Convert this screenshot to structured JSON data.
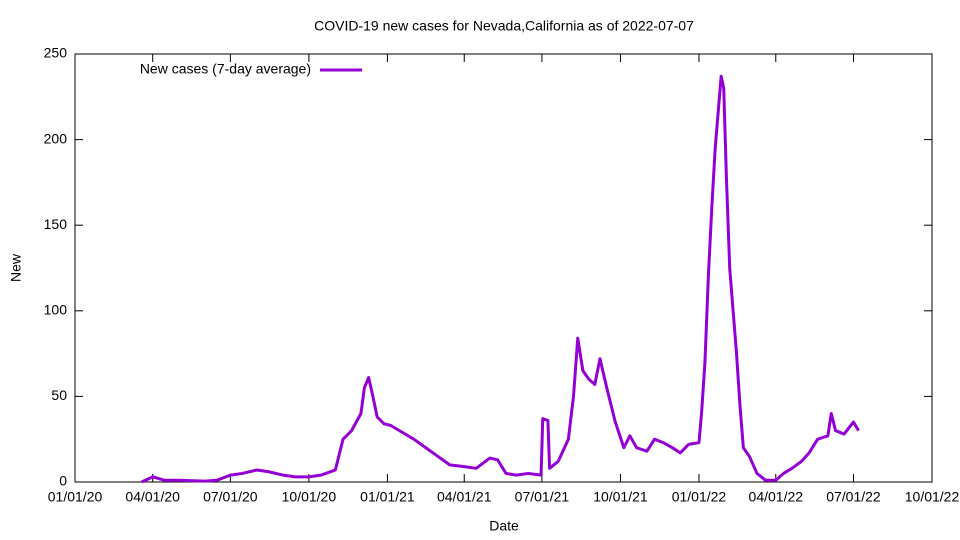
{
  "chart_data": {
    "type": "line",
    "title": "COVID-19 new cases for Nevada,California as of 2022-07-07",
    "x_label": "Date",
    "y_label": "New",
    "x": [
      "2020-03-19",
      "2020-04-01",
      "2020-04-15",
      "2020-05-01",
      "2020-06-01",
      "2020-06-15",
      "2020-07-01",
      "2020-07-15",
      "2020-08-01",
      "2020-08-15",
      "2020-09-01",
      "2020-09-15",
      "2020-10-01",
      "2020-10-15",
      "2020-11-01",
      "2020-11-10",
      "2020-11-20",
      "2020-12-01",
      "2020-12-05",
      "2020-12-10",
      "2020-12-15",
      "2020-12-20",
      "2020-12-28",
      "2021-01-05",
      "2021-01-15",
      "2021-02-01",
      "2021-02-15",
      "2021-03-01",
      "2021-03-15",
      "2021-04-01",
      "2021-04-15",
      "2021-05-01",
      "2021-05-10",
      "2021-05-20",
      "2021-06-01",
      "2021-06-15",
      "2021-06-30",
      "2021-07-02",
      "2021-07-08",
      "2021-07-10",
      "2021-07-20",
      "2021-08-01",
      "2021-08-07",
      "2021-08-12",
      "2021-08-18",
      "2021-08-25",
      "2021-09-01",
      "2021-09-07",
      "2021-09-15",
      "2021-09-25",
      "2021-10-05",
      "2021-10-12",
      "2021-10-20",
      "2021-11-01",
      "2021-11-10",
      "2021-11-20",
      "2021-12-01",
      "2021-12-10",
      "2021-12-20",
      "2022-01-01",
      "2022-01-04",
      "2022-01-08",
      "2022-01-12",
      "2022-01-16",
      "2022-01-20",
      "2022-01-25",
      "2022-01-27",
      "2022-01-30",
      "2022-02-02",
      "2022-02-06",
      "2022-02-10",
      "2022-02-14",
      "2022-02-18",
      "2022-02-22",
      "2022-03-01",
      "2022-03-10",
      "2022-03-20",
      "2022-04-01",
      "2022-04-10",
      "2022-04-20",
      "2022-05-01",
      "2022-05-10",
      "2022-05-20",
      "2022-06-01",
      "2022-06-05",
      "2022-06-10",
      "2022-06-20",
      "2022-07-01",
      "2022-07-07"
    ],
    "series": [
      {
        "name": "New cases (7-day average)",
        "color": "#9400d3",
        "values": [
          0,
          3,
          1,
          1,
          0.5,
          1,
          4,
          5,
          7,
          6,
          4,
          3,
          3,
          4,
          7,
          25,
          30,
          40,
          55,
          61,
          50,
          38,
          34,
          33,
          30,
          25,
          20,
          15,
          10,
          9,
          8,
          14,
          13,
          5,
          4,
          5,
          4,
          37,
          36,
          8,
          12,
          25,
          50,
          84,
          65,
          60,
          57,
          72,
          55,
          35,
          20,
          27,
          20,
          18,
          25,
          23,
          20,
          17,
          22,
          23,
          40,
          70,
          120,
          160,
          195,
          225,
          237,
          230,
          180,
          125,
          100,
          75,
          45,
          20,
          15,
          5,
          1,
          1,
          5,
          8,
          12,
          17,
          25,
          27,
          40,
          30,
          28,
          35,
          30
        ]
      }
    ],
    "xlim": [
      "2020-01-01",
      "2022-10-01"
    ],
    "xticks": [
      {
        "value": "2020-01-01",
        "label": "01/01/20"
      },
      {
        "value": "2020-04-01",
        "label": "04/01/20"
      },
      {
        "value": "2020-07-01",
        "label": "07/01/20"
      },
      {
        "value": "2020-10-01",
        "label": "10/01/20"
      },
      {
        "value": "2021-01-01",
        "label": "01/01/21"
      },
      {
        "value": "2021-04-01",
        "label": "04/01/21"
      },
      {
        "value": "2021-07-01",
        "label": "07/01/21"
      },
      {
        "value": "2021-10-01",
        "label": "10/01/21"
      },
      {
        "value": "2022-01-01",
        "label": "01/01/22"
      },
      {
        "value": "2022-04-01",
        "label": "04/01/22"
      },
      {
        "value": "2022-07-01",
        "label": "07/01/22"
      },
      {
        "value": "2022-10-01",
        "label": "10/01/22"
      }
    ],
    "ylim": [
      0,
      250
    ],
    "yticks": [
      0,
      50,
      100,
      150,
      200,
      250
    ],
    "legend": "upper left"
  }
}
